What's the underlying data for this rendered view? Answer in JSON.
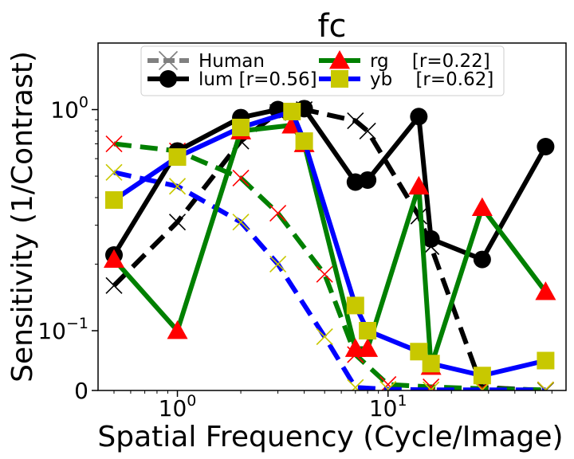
{
  "chart_data": {
    "type": "line",
    "title": "fc",
    "xlabel": "Spatial Frequency (Cycle/Image)",
    "ylabel": "Sensitivity (1/Contrast)",
    "x_scale": "log",
    "y_scale": "symlog",
    "xlim": [
      0.42,
      70
    ],
    "ylim": [
      0,
      2.0
    ],
    "x_ticks": [
      {
        "value": 1,
        "label": "10^0"
      },
      {
        "value": 10,
        "label": "10^1"
      }
    ],
    "y_ticks": [
      {
        "value": 0,
        "label": "0"
      },
      {
        "value": 0.1,
        "label": "10^-1"
      },
      {
        "value": 1,
        "label": "10^0"
      }
    ],
    "grid": false,
    "legend": {
      "position": "top-center",
      "entries": [
        {
          "label": "Human",
          "color": "#808080",
          "marker": "x",
          "style": "dashed"
        },
        {
          "label": "lum [r=0.56]",
          "color": "#000000",
          "marker": "circle",
          "style": "solid"
        },
        {
          "label": "rg    [r=0.22]",
          "color": "#008000",
          "marker": "triangle",
          "style": "solid"
        },
        {
          "label": "yb    [r=0.62]",
          "color": "#0000ff",
          "marker": "square",
          "style": "solid"
        }
      ]
    },
    "series": [
      {
        "name": "lum [r=0.56]",
        "role": "model",
        "color": "#000000",
        "marker": "circle",
        "marker_color": "#000000",
        "style": "solid",
        "points": [
          [
            0.5,
            0.22
          ],
          [
            1.0,
            0.65
          ],
          [
            2.0,
            0.92
          ],
          [
            3.0,
            1.0
          ],
          [
            4.0,
            1.01
          ],
          [
            7.0,
            0.47
          ],
          [
            8.0,
            0.48
          ],
          [
            14.0,
            0.93
          ],
          [
            16.0,
            0.26
          ],
          [
            28.0,
            0.21
          ],
          [
            56.0,
            0.68
          ]
        ]
      },
      {
        "name": "rg    [r=0.22]",
        "role": "model",
        "color": "#008000",
        "marker": "triangle",
        "marker_color": "#ff0000",
        "style": "solid",
        "points": [
          [
            0.5,
            0.21
          ],
          [
            1.0,
            0.1
          ],
          [
            2.0,
            0.8
          ],
          [
            3.5,
            0.85
          ],
          [
            4.0,
            0.7
          ],
          [
            7.0,
            0.07
          ],
          [
            8.0,
            0.07
          ],
          [
            14.0,
            0.45
          ],
          [
            16.0,
            0.04
          ],
          [
            28.0,
            0.36
          ],
          [
            56.0,
            0.15
          ]
        ]
      },
      {
        "name": "yb    [r=0.62]",
        "role": "model",
        "color": "#0000ff",
        "marker": "square",
        "marker_color": "#c8c800",
        "style": "solid",
        "points": [
          [
            0.5,
            0.39
          ],
          [
            1.0,
            0.61
          ],
          [
            2.0,
            0.83
          ],
          [
            3.5,
            0.98
          ],
          [
            4.0,
            0.72
          ],
          [
            7.0,
            0.13
          ],
          [
            8.0,
            0.1
          ],
          [
            14.0,
            0.065
          ],
          [
            16.0,
            0.045
          ],
          [
            28.0,
            0.025
          ],
          [
            56.0,
            0.05
          ]
        ]
      },
      {
        "name": "Human (lum)",
        "role": "human",
        "color": "#000000",
        "marker": "x",
        "marker_color": "#000000",
        "style": "dashed",
        "points": [
          [
            0.5,
            0.16
          ],
          [
            1.0,
            0.31
          ],
          [
            2.0,
            0.72
          ],
          [
            3.0,
            0.97
          ],
          [
            4.0,
            1.0
          ],
          [
            7.0,
            0.89
          ],
          [
            8.0,
            0.8
          ],
          [
            14.0,
            0.33
          ],
          [
            16.0,
            0.24
          ],
          [
            28.0,
            0.005
          ],
          [
            56.0,
            0.0
          ]
        ]
      },
      {
        "name": "Human (rg)",
        "role": "human",
        "color": "#008000",
        "marker": "x",
        "marker_color": "#ff0000",
        "style": "dashed",
        "points": [
          [
            0.5,
            0.7
          ],
          [
            1.0,
            0.65
          ],
          [
            2.0,
            0.49
          ],
          [
            3.0,
            0.34
          ],
          [
            5.0,
            0.18
          ],
          [
            7.0,
            0.06
          ],
          [
            10.0,
            0.01
          ],
          [
            16.0,
            0.006
          ],
          [
            28.0,
            0.003
          ],
          [
            56.0,
            0.001
          ]
        ]
      },
      {
        "name": "Human (yb)",
        "role": "human",
        "color": "#0000ff",
        "marker": "x",
        "marker_color": "#c8c800",
        "style": "dashed",
        "points": [
          [
            0.5,
            0.52
          ],
          [
            1.0,
            0.45
          ],
          [
            2.0,
            0.31
          ],
          [
            3.0,
            0.2
          ],
          [
            5.0,
            0.09
          ],
          [
            7.0,
            0.005
          ],
          [
            10.0,
            0.002
          ],
          [
            16.0,
            0.001
          ],
          [
            28.0,
            0.001
          ],
          [
            56.0,
            0.001
          ]
        ]
      }
    ]
  }
}
